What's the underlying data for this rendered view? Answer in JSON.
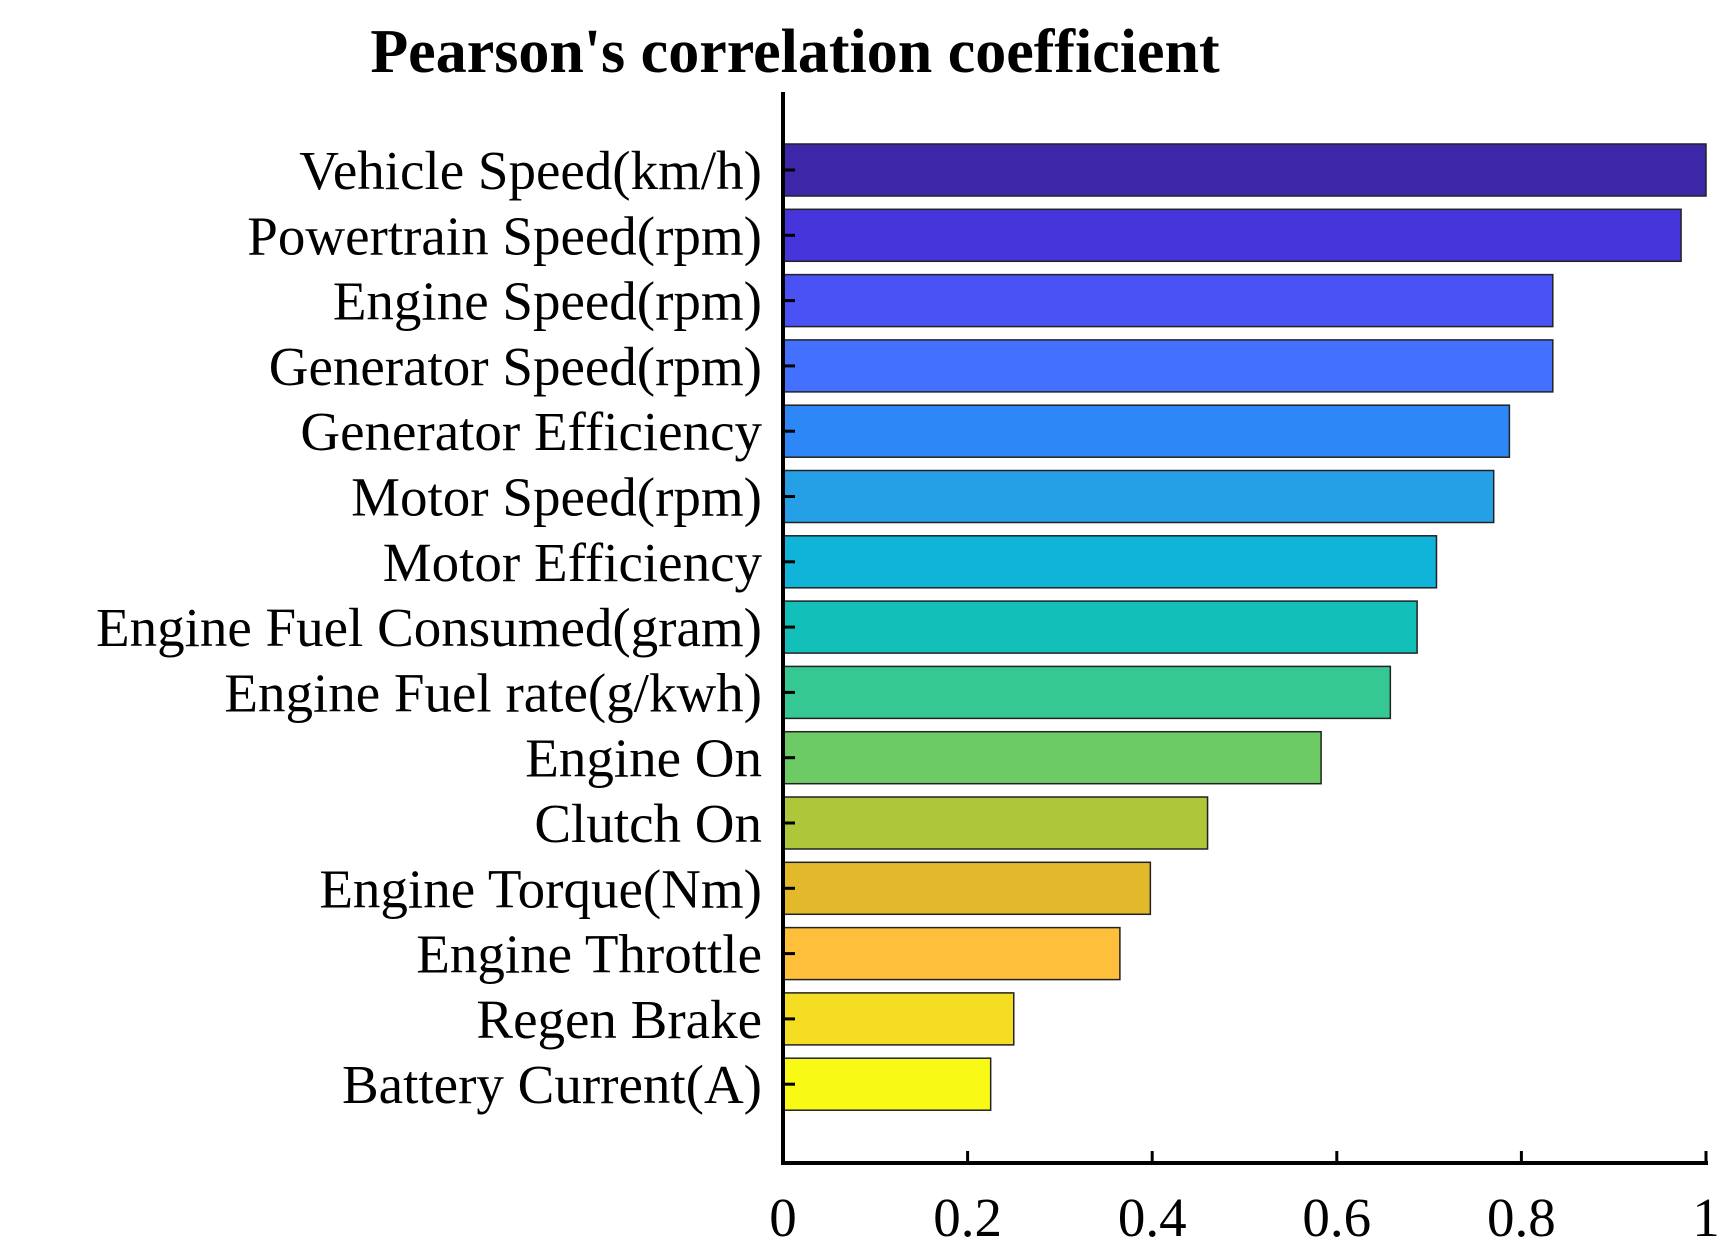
{
  "chart_data": {
    "type": "bar",
    "orientation": "horizontal",
    "title": "Pearson's correlation coefficient",
    "xlabel": "",
    "ylabel": "",
    "xlim": [
      0,
      1
    ],
    "xticks": [
      0,
      0.2,
      0.4,
      0.6,
      0.8,
      1
    ],
    "xtick_labels": [
      "0",
      "0.2",
      "0.4",
      "0.6",
      "0.8",
      "1"
    ],
    "grid": false,
    "legend": "none",
    "categories": [
      "Vehicle Speed(km/h)",
      "Powertrain Speed(rpm)",
      "Engine Speed(rpm)",
      "Generator Speed(rpm)",
      "Generator Efficiency",
      "Motor Speed(rpm)",
      "Motor Efficiency",
      "Engine Fuel Consumed(gram)",
      "Engine Fuel rate(g/kwh)",
      "Engine On",
      "Clutch On",
      "Engine Torque(Nm)",
      "Engine Throttle",
      "Regen Brake",
      "Battery Current(A)"
    ],
    "values": [
      1.0,
      0.973,
      0.834,
      0.834,
      0.787,
      0.77,
      0.708,
      0.687,
      0.658,
      0.583,
      0.46,
      0.398,
      0.365,
      0.25,
      0.225
    ],
    "colors": [
      "#3e26a8",
      "#4535db",
      "#4a51f5",
      "#4370fe",
      "#2e87f7",
      "#25a0e6",
      "#11b4d9",
      "#12bfb9",
      "#36c893",
      "#6dcb66",
      "#adc63a",
      "#e2b92b",
      "#febf3a",
      "#f5dd23",
      "#f8fa16"
    ]
  }
}
